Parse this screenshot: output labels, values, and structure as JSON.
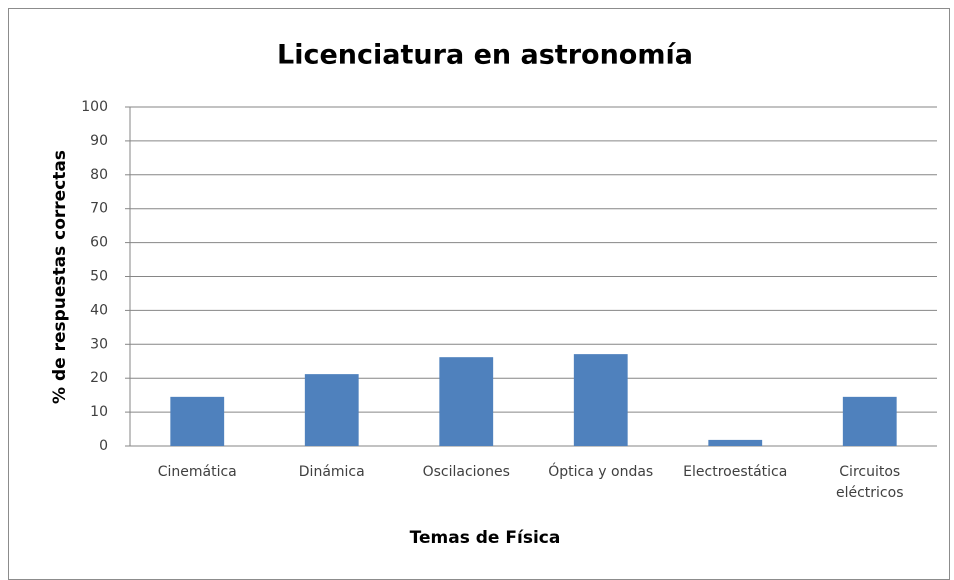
{
  "chart_data": {
    "type": "bar",
    "title": "Licenciatura en astronomía",
    "x_label": "Temas de Física",
    "y_label": "% de respuestas correctas",
    "categories": [
      "Cinemática",
      "Dinámica",
      "Oscilaciones",
      "Óptica y ondas",
      "Electroestática",
      "Circuitos eléctricos"
    ],
    "values": [
      14.5,
      21.2,
      26.2,
      27.1,
      1.8,
      14.5
    ],
    "color": "#4f81bd",
    "ylim": [
      0,
      100
    ],
    "yticks": [
      0,
      10,
      20,
      30,
      40,
      50,
      60,
      70,
      80,
      90,
      100
    ],
    "grid": true
  }
}
